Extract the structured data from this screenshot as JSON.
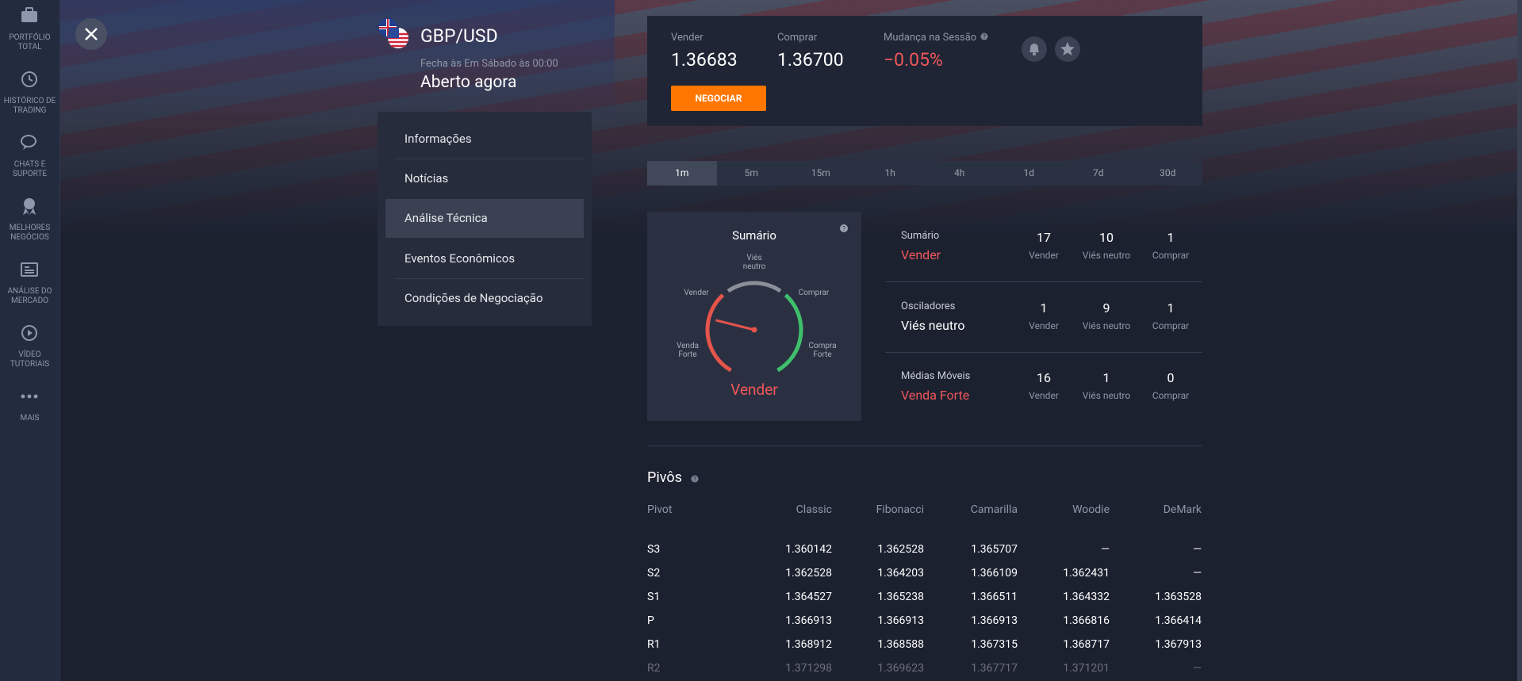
{
  "sidebar": [
    "PORTFÓLIO TOTAL",
    "HISTÓRICO DE TRADING",
    "CHATS E SUPORTE",
    "MELHORES NEGÓCIOS",
    "ANÁLISE DO MERCADO",
    "VÍDEO TUTORIAIS",
    "MAIS"
  ],
  "header": {
    "symbol": "GBP/USD",
    "schedule": "Fecha às Em Sábado às 00:00",
    "status": "Aberto agora"
  },
  "menu": [
    "Informações",
    "Notícias",
    "Análise Técnica",
    "Eventos Econômicos",
    "Condições de Negociação"
  ],
  "quote": {
    "sell_label": "Vender",
    "sell": "1.36683",
    "buy_label": "Comprar",
    "buy": "1.36700",
    "change_label": "Mudança na Sessão",
    "change": "−0.05%",
    "button": "NEGOCIAR"
  },
  "timeframes": [
    "1m",
    "5m",
    "15m",
    "1h",
    "4h",
    "1d",
    "7d",
    "30d"
  ],
  "gauge": {
    "title": "Sumário",
    "neutral": "Viés neutro",
    "sell": "Vender",
    "buy": "Comprar",
    "strong_sell": "Venda Forte",
    "strong_buy": "Compra Forte",
    "result": "Vender"
  },
  "summary": {
    "count_labels": [
      "Vender",
      "Viés neutro",
      "Comprar"
    ],
    "rows": [
      {
        "name": "Sumário",
        "verdict": "Vender",
        "counts": [
          "17",
          "10",
          "1"
        ]
      },
      {
        "name": "Osciladores",
        "verdict": "Viés neutro",
        "counts": [
          "1",
          "9",
          "1"
        ]
      },
      {
        "name": "Médias Móveis",
        "verdict": "Venda Forte",
        "counts": [
          "16",
          "1",
          "0"
        ]
      }
    ]
  },
  "pivots": {
    "title": "Pivôs",
    "headers": [
      "Pivot",
      "Classic",
      "Fibonacci",
      "Camarilla",
      "Woodie",
      "DeMark"
    ],
    "rows": [
      [
        "S3",
        "1.360142",
        "1.362528",
        "1.365707",
        "—",
        "—"
      ],
      [
        "S2",
        "1.362528",
        "1.364203",
        "1.366109",
        "1.362431",
        "—"
      ],
      [
        "S1",
        "1.364527",
        "1.365238",
        "1.366511",
        "1.364332",
        "1.363528"
      ],
      [
        "P",
        "1.366913",
        "1.366913",
        "1.366913",
        "1.366816",
        "1.366414"
      ],
      [
        "R1",
        "1.368912",
        "1.368588",
        "1.367315",
        "1.368717",
        "1.367913"
      ],
      [
        "R2",
        "1.371298",
        "1.369623",
        "1.367717",
        "1.371201",
        "—"
      ]
    ]
  }
}
